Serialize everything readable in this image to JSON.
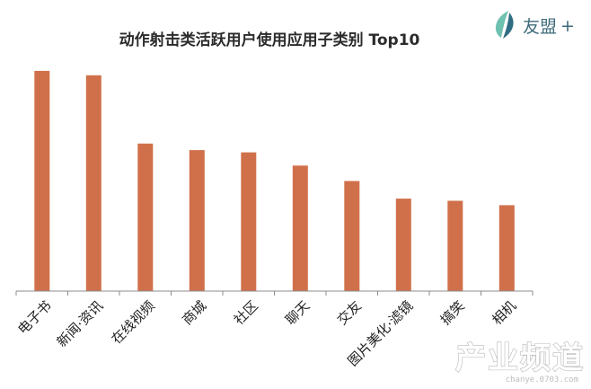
{
  "chart_data": {
    "type": "bar",
    "title": "动作射击类活跃用户使用应用子类别 Top10",
    "categories": [
      "电子书",
      "新闻·资讯",
      "在线视频",
      "商城",
      "社区",
      "聊天",
      "交友",
      "图片美化·滤镜",
      "搞笑",
      "相机"
    ],
    "values": [
      100,
      98,
      67,
      64,
      63,
      57,
      50,
      42,
      41,
      39
    ],
    "ylim": [
      0,
      102
    ],
    "xlabel": "",
    "ylabel": "",
    "grid": false,
    "legend": "none",
    "bar_color": "#d0704a"
  },
  "logo": {
    "text": "友盟",
    "plus": "+",
    "icon": "leaf-logo-icon",
    "color": "#3d6b7a",
    "icon_colors": [
      "#6fc1b0",
      "#2f6d82"
    ]
  },
  "watermark": {
    "main": "产业频道",
    "sub": "chanye.0703.com"
  }
}
